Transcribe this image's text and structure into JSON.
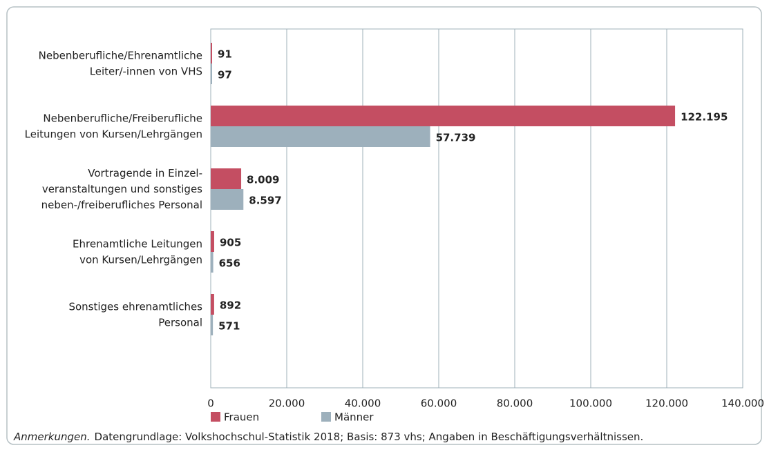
{
  "chart_data": {
    "type": "bar",
    "orientation": "horizontal",
    "categories": [
      "Nebenberufliche/Ehrenamtliche\nLeiter/-innen von VHS",
      "Nebenberufliche/Freiberufliche\nLeitungen von Kursen/Lehrgängen",
      "Vortragende in Einzel-\nveranstaltungen und sonstiges\nneben-/freiberufliches Personal",
      "Ehrenamtliche Leitungen\nvon Kursen/Lehrgängen",
      "Sonstiges ehrenamtliches\nPersonal"
    ],
    "series": [
      {
        "name": "Frauen",
        "color": "#c44e62",
        "values": [
          91,
          122195,
          8009,
          905,
          892
        ],
        "value_labels": [
          "91",
          "122.195",
          "8.009",
          "905",
          "892"
        ]
      },
      {
        "name": "Männer",
        "color": "#9db0bc",
        "values": [
          97,
          57739,
          8597,
          656,
          571
        ],
        "value_labels": [
          "97",
          "57.739",
          "8.597",
          "656",
          "571"
        ]
      }
    ],
    "xlim": [
      0,
      140000
    ],
    "xticks": [
      0,
      {
        "value": 20000,
        "label": "20.000"
      },
      {
        "value": 40000,
        "label": "40.000"
      },
      {
        "value": 60000,
        "label": "60.000"
      },
      {
        "value": 80000,
        "label": "80.000"
      },
      {
        "value": 100000,
        "label": "100.000"
      },
      {
        "value": 120000,
        "label": "120.000"
      },
      {
        "value": 140000,
        "label": "140.000"
      }
    ],
    "grid": true,
    "note_label": "Anmerkungen.",
    "note": "Datengrundlage: Volkshochschul-Statistik 2018; Basis: 873 vhs; Angaben in Beschäftigungsverhältnissen."
  }
}
